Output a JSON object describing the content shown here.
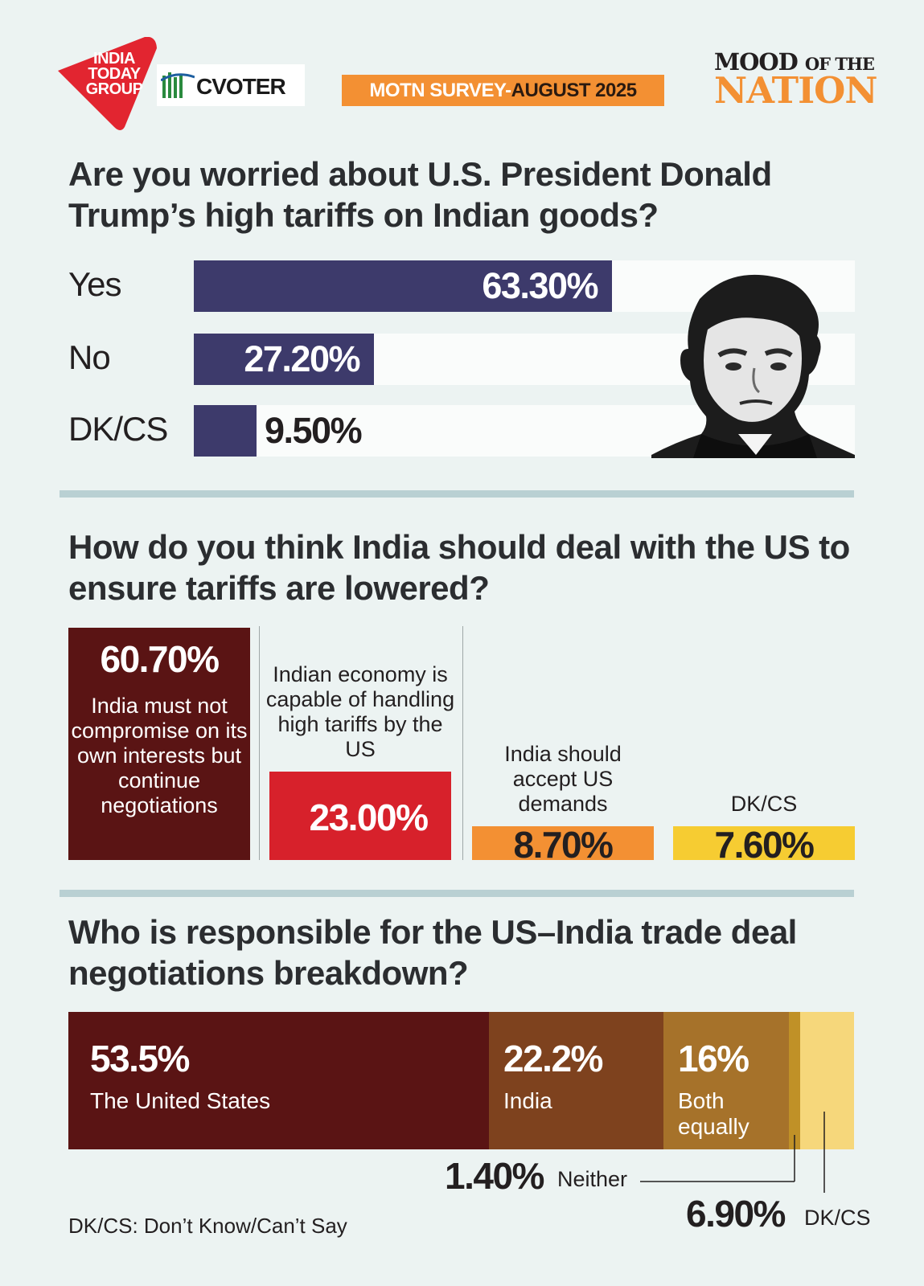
{
  "header": {
    "logo_lines": [
      "INDIA",
      "TODAY",
      "GROUP"
    ],
    "partner": "CVOTER",
    "badge_part1": "MOTN SURVEY-",
    "badge_part2": "AUGUST 2025",
    "mood_line1": "MOOD",
    "mood_line1_small": "OF THE",
    "mood_line2": "NATION"
  },
  "colors": {
    "navy": "#3d3a6b",
    "maroon": "#5a1414",
    "red": "#d7212b",
    "orange": "#f39033",
    "yellow": "#f6cc32",
    "brown": "#7e421e",
    "gold": "#a6722a",
    "dark_gold": "#c09127",
    "pale_yellow": "#f6d77b"
  },
  "chart_data": [
    {
      "type": "bar",
      "orientation": "horizontal",
      "title": "Are you worried about U.S. President Donald Trump’s high tariffs on Indian goods?",
      "categories": [
        "Yes",
        "No",
        "DK/CS"
      ],
      "values": [
        63.3,
        27.2,
        9.5
      ],
      "value_labels": [
        "63.30%",
        "27.20%",
        "9.50%"
      ],
      "xlim": [
        0,
        100
      ],
      "grid": false
    },
    {
      "type": "bar",
      "orientation": "vertical",
      "title": "How do you think India should deal with the US to ensure tariffs are lowered?",
      "categories": [
        "India must not compromise on its own interests but continue negotiations",
        "Indian economy is capable of handling high tariffs by the US",
        "India should accept US demands",
        "DK/CS"
      ],
      "values": [
        60.7,
        23.0,
        8.7,
        7.6
      ],
      "value_labels": [
        "60.70%",
        "23.00%",
        "8.70%",
        "7.60%"
      ],
      "grid": false
    },
    {
      "type": "bar",
      "orientation": "horizontal-stacked",
      "title": "Who is responsible for the US–India trade deal negotiations breakdown?",
      "categories": [
        "The United States",
        "India",
        "Both equally",
        "Neither",
        "DK/CS"
      ],
      "values": [
        53.5,
        22.2,
        16,
        1.4,
        6.9
      ],
      "value_labels": [
        "53.5%",
        "22.2%",
        "16%",
        "1.40%",
        "6.90%"
      ],
      "grid": false
    }
  ],
  "q1": {
    "title": "Are you worried about U.S. President Donald Trump’s high tariffs on Indian goods?"
  },
  "q2": {
    "title": "How do you think India should deal with the US to ensure tariffs are lowered?",
    "desc": [
      "India must not compromise on its own interests but continue negotiations",
      "Indian economy is capable of handling high tariffs by the US",
      "India should accept US demands",
      "DK/CS"
    ]
  },
  "q3": {
    "title": "Who is responsible for the US–India trade deal negotiations breakdown?",
    "labels": [
      "The United States",
      "India",
      "Both",
      "equally",
      "Neither",
      "DK/CS"
    ]
  },
  "footnote": "DK/CS: Don’t Know/Can’t Say"
}
